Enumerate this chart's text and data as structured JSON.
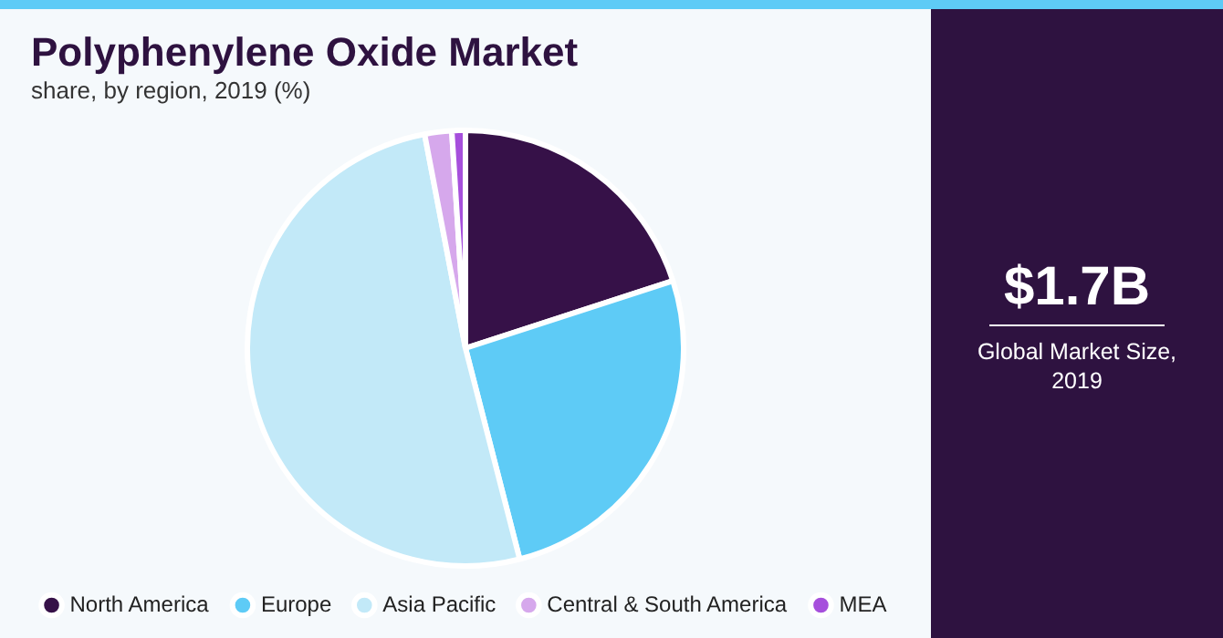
{
  "chart_data": {
    "type": "pie",
    "title": "Polyphenylene Oxide Market",
    "subtitle": "share, by region, 2019 (%)",
    "categories": [
      "North America",
      "Europe",
      "Asia Pacific",
      "Central & South America",
      "MEA"
    ],
    "values": [
      20,
      26,
      51,
      2,
      1
    ],
    "colors": [
      "#361148",
      "#5ecbf6",
      "#c2e9f8",
      "#d6a8ec",
      "#a64fdc"
    ],
    "legend": "bottom",
    "annotations": [
      "$1.7B",
      "Global Market Size, 2019"
    ]
  }
}
